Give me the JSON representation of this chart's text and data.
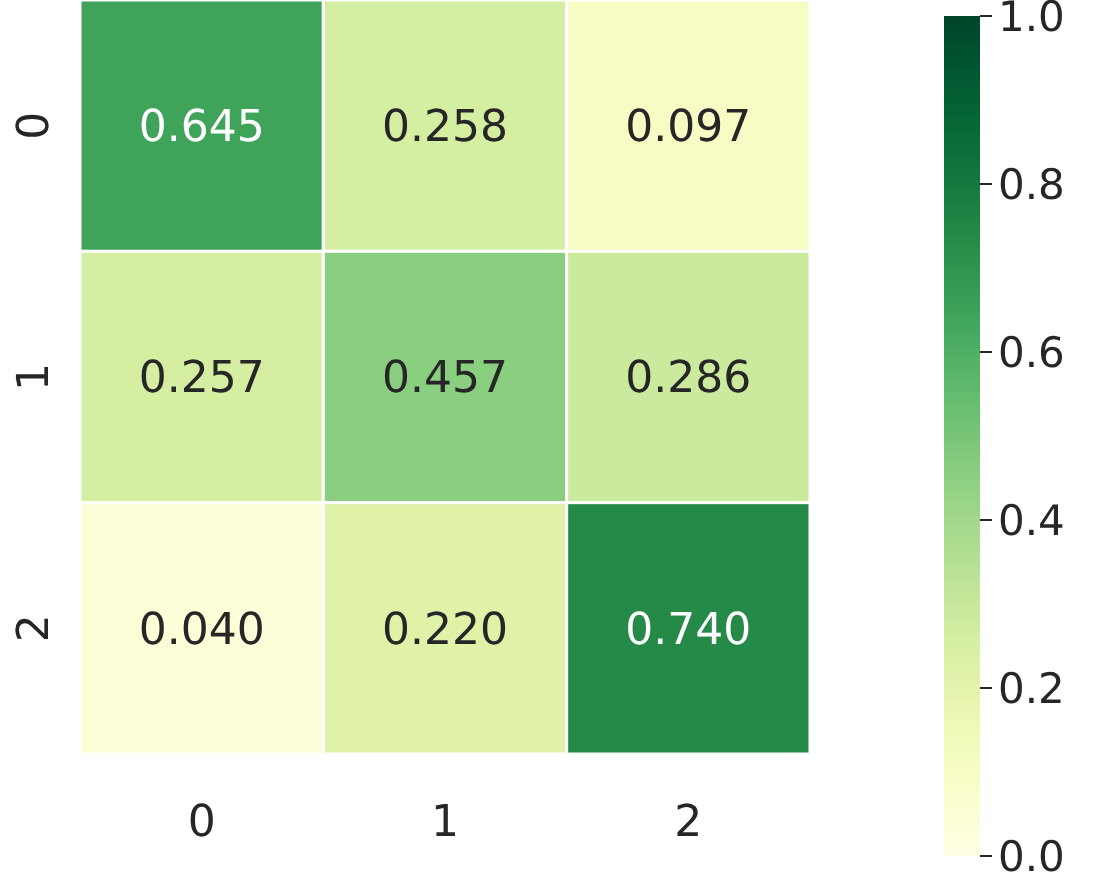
{
  "chart_data": {
    "type": "heatmap",
    "categories": [
      "0",
      "1",
      "2"
    ],
    "y_categories": [
      "0",
      "1",
      "2"
    ],
    "cells": [
      [
        0.645,
        0.258,
        0.097
      ],
      [
        0.257,
        0.457,
        0.286
      ],
      [
        0.04,
        0.22,
        0.74
      ]
    ],
    "cell_labels": [
      [
        "0.645",
        "0.258",
        "0.097"
      ],
      [
        "0.257",
        "0.457",
        "0.286"
      ],
      [
        "0.040",
        "0.220",
        "0.740"
      ]
    ],
    "clim": [
      0,
      1
    ],
    "cticks": [
      {
        "value": 0,
        "label": "0.0"
      },
      {
        "value": 0.2,
        "label": "0.2"
      },
      {
        "value": 0.4,
        "label": "0.4"
      },
      {
        "value": 0.6,
        "label": "0.6"
      },
      {
        "value": 0.8,
        "label": "0.8"
      },
      {
        "value": 1,
        "label": "1.0"
      }
    ]
  }
}
